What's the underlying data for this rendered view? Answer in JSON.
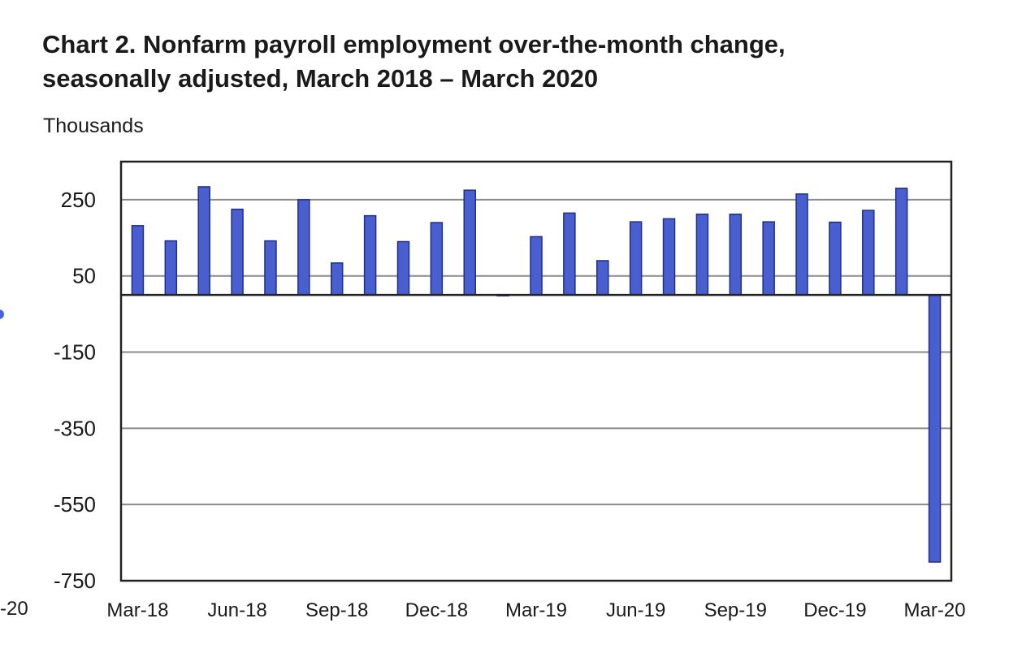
{
  "title_lines": [
    "Chart 2. Nonfarm payroll employment over-the-month change,",
    "seasonally adjusted, March 2018 – March 2020"
  ],
  "edge_fragment": "-20",
  "chart_data": {
    "type": "bar",
    "title": "Chart 2. Nonfarm payroll employment over-the-month change, seasonally adjusted, March 2018 – March 2020",
    "ylabel": "Thousands",
    "xlabel": "",
    "ylim": [
      -750,
      350
    ],
    "y_ticks": [
      -750,
      -550,
      -350,
      -150,
      50,
      250
    ],
    "y_tick_labels": [
      "-750",
      "-550",
      "-350",
      "-150",
      "50",
      "250"
    ],
    "grid": true,
    "bar_color": "#4a5fcf",
    "categories": [
      "Mar-18",
      "Apr-18",
      "May-18",
      "Jun-18",
      "Jul-18",
      "Aug-18",
      "Sep-18",
      "Oct-18",
      "Nov-18",
      "Dec-18",
      "Jan-19",
      "Feb-19",
      "Mar-19",
      "Apr-19",
      "May-19",
      "Jun-19",
      "Jul-19",
      "Aug-19",
      "Sep-19",
      "Oct-19",
      "Nov-19",
      "Dec-19",
      "Jan-20",
      "Feb-20",
      "Mar-20"
    ],
    "x_tick_labels": [
      "Mar-18",
      "Jun-18",
      "Sep-18",
      "Dec-18",
      "Mar-19",
      "Jun-19",
      "Sep-19",
      "Dec-19",
      "Mar-20"
    ],
    "values": [
      182,
      142,
      284,
      225,
      142,
      250,
      84,
      208,
      140,
      190,
      275,
      1,
      153,
      215,
      90,
      192,
      200,
      212,
      212,
      192,
      265,
      191,
      222,
      280,
      -701
    ]
  }
}
